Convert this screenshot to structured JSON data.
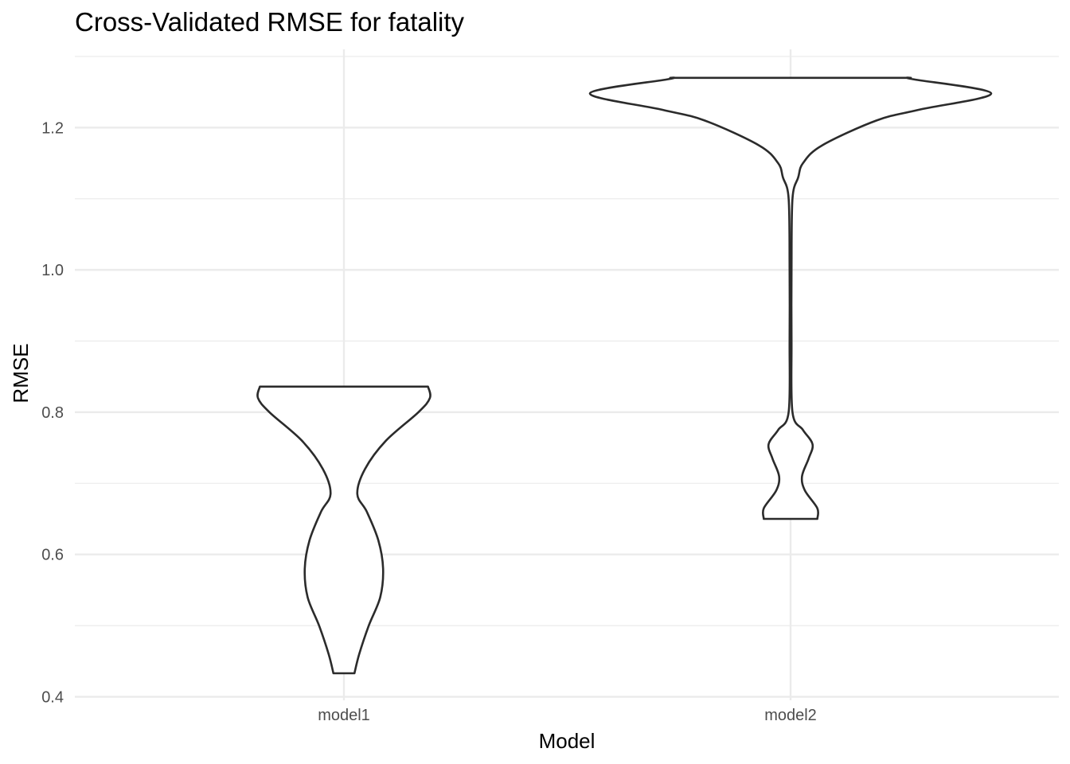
{
  "chart_data": {
    "type": "violin",
    "title": "Cross-Validated RMSE for fatality",
    "xlabel": "Model",
    "ylabel": "RMSE",
    "categories": [
      "model1",
      "model2"
    ],
    "ylim": [
      0.395,
      1.31
    ],
    "yticks": [
      0.4,
      0.6,
      0.8,
      1.0,
      1.2
    ],
    "ytick_labels": [
      "0.4",
      "0.6",
      "0.8",
      "1.0",
      "1.2"
    ],
    "grid": true,
    "series": [
      {
        "category": "model1",
        "min": 0.433,
        "max": 0.836,
        "density_profile": [
          [
            0.433,
            0.11
          ],
          [
            0.46,
            0.16
          ],
          [
            0.5,
            0.26
          ],
          [
            0.54,
            0.38
          ],
          [
            0.58,
            0.41
          ],
          [
            0.62,
            0.36
          ],
          [
            0.66,
            0.24
          ],
          [
            0.685,
            0.14
          ],
          [
            0.72,
            0.22
          ],
          [
            0.76,
            0.44
          ],
          [
            0.8,
            0.78
          ],
          [
            0.82,
            0.9
          ],
          [
            0.836,
            0.88
          ]
        ]
      },
      {
        "category": "model2",
        "min": 0.65,
        "max": 1.27,
        "density_profile": [
          [
            0.65,
            0.28
          ],
          [
            0.665,
            0.28
          ],
          [
            0.69,
            0.15
          ],
          [
            0.71,
            0.12
          ],
          [
            0.735,
            0.19
          ],
          [
            0.755,
            0.23
          ],
          [
            0.775,
            0.13
          ],
          [
            0.8,
            0.02
          ],
          [
            0.9,
            0.01
          ],
          [
            1.0,
            0.01
          ],
          [
            1.1,
            0.02
          ],
          [
            1.13,
            0.08
          ],
          [
            1.15,
            0.13
          ],
          [
            1.175,
            0.33
          ],
          [
            1.21,
            0.9
          ],
          [
            1.225,
            1.34
          ],
          [
            1.248,
            2.1
          ],
          [
            1.268,
            1.28
          ],
          [
            1.27,
            1.26
          ]
        ]
      }
    ]
  }
}
